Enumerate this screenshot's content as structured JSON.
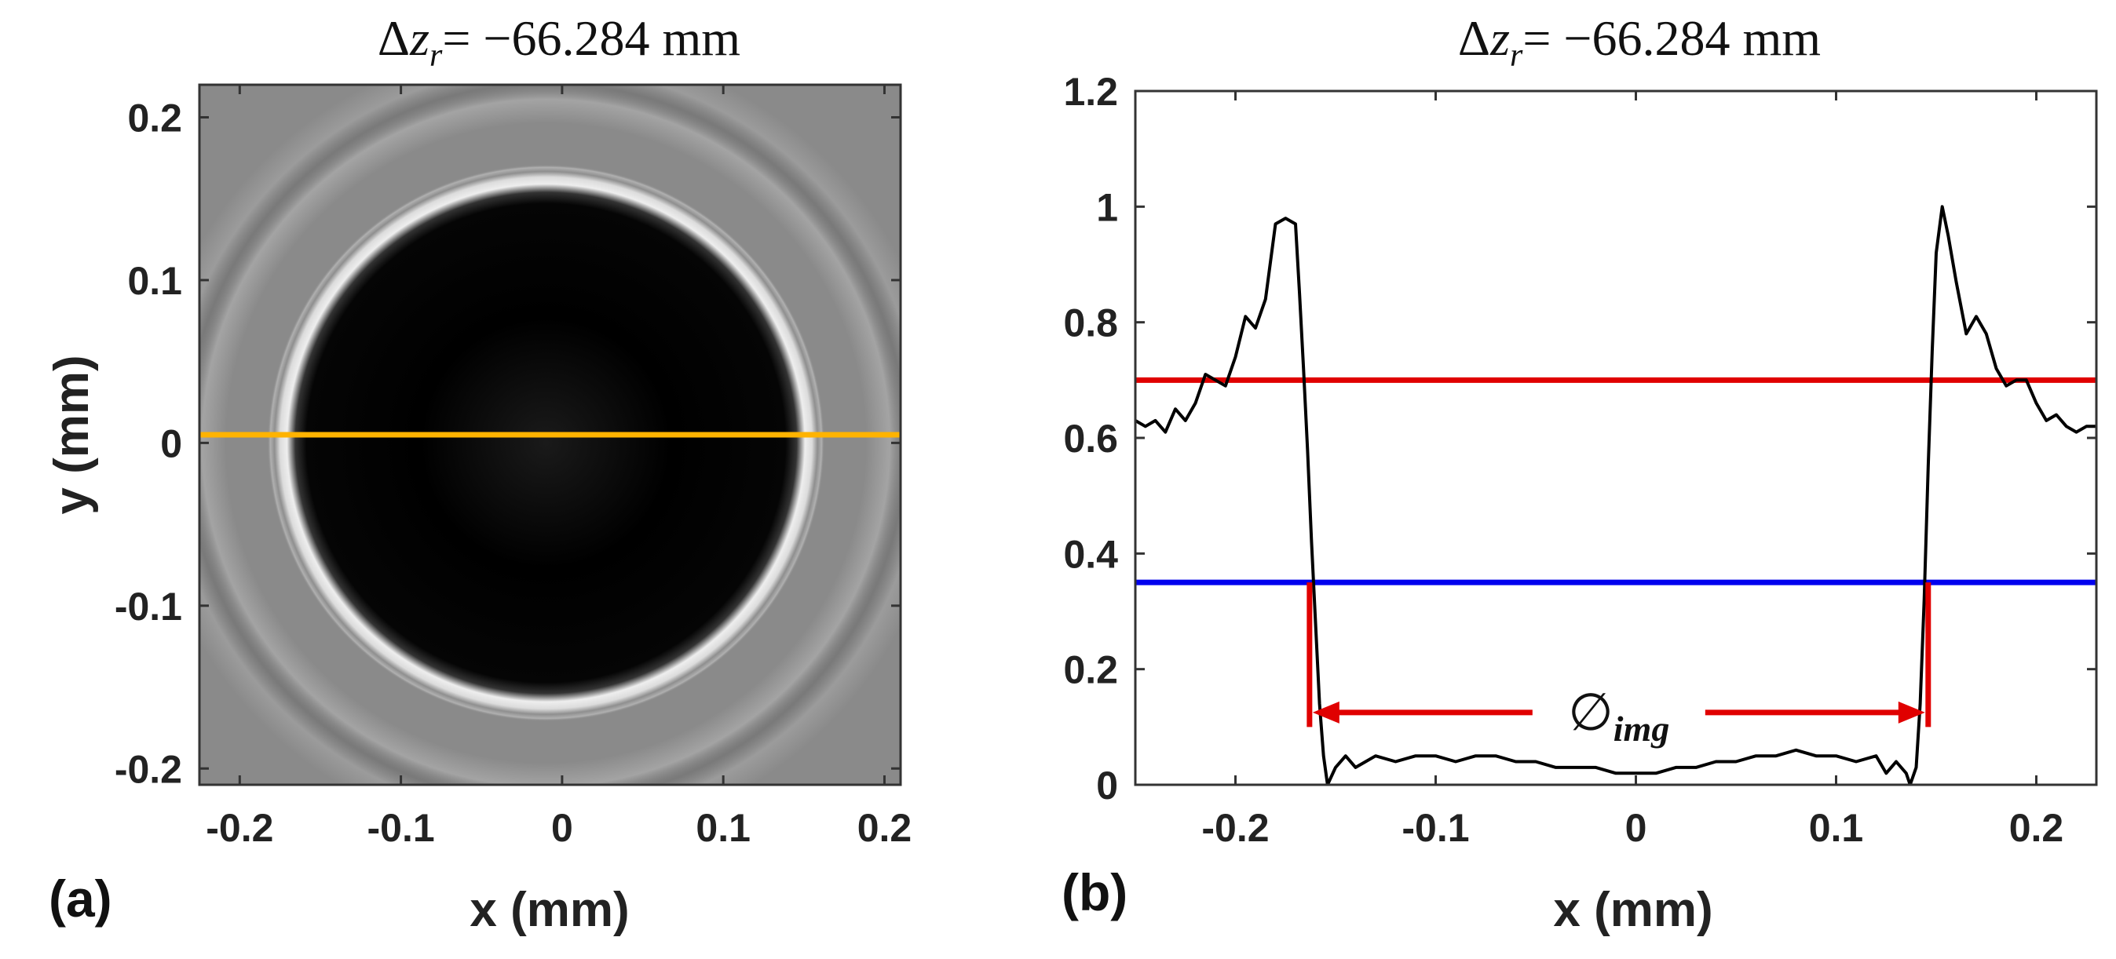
{
  "chart_data": [
    {
      "panel_label": "(a)",
      "type": "heatmap",
      "title": {
        "delta": "Δ",
        "var": "z",
        "sub": "r",
        "rest": "= −66.284 mm"
      },
      "xlabel": "x (mm)",
      "ylabel": "y (mm)",
      "xlim": [
        -0.225,
        0.21
      ],
      "ylim": [
        -0.21,
        0.22
      ],
      "xticks": [
        -0.2,
        -0.1,
        0,
        0.1,
        0.2
      ],
      "xtick_labels": [
        "-0.2",
        "-0.1",
        "0",
        "0.1",
        "0.2"
      ],
      "yticks": [
        0.2,
        0.1,
        0,
        -0.1,
        -0.2
      ],
      "ytick_labels": [
        "0.2",
        "0.1",
        "0",
        "-0.1",
        "-0.2"
      ],
      "image": {
        "colormap": "gray",
        "disk_center": [
          -0.01,
          0.0
        ],
        "disk_radius": 0.16
      },
      "line_profile": {
        "y": 0.005,
        "color": "#ffb300"
      }
    },
    {
      "panel_label": "(b)",
      "type": "line",
      "title": {
        "delta": "Δ",
        "var": "z",
        "sub": "r",
        "rest": "= −66.284 mm"
      },
      "xlabel": "x (mm)",
      "ylabel": "",
      "xlim": [
        -0.25,
        0.23
      ],
      "ylim": [
        0,
        1.2
      ],
      "xticks": [
        -0.2,
        -0.1,
        0,
        0.1,
        0.2
      ],
      "xtick_labels": [
        "-0.2",
        "-0.1",
        "0",
        "0.1",
        "0.2"
      ],
      "yticks": [
        0,
        0.2,
        0.4,
        0.6,
        0.8,
        1,
        1.2
      ],
      "ytick_labels": [
        "0",
        "0.2",
        "0.4",
        "0.6",
        "0.8",
        "1",
        "1.2"
      ],
      "series": [
        {
          "name": "profile",
          "color": "#000000",
          "x": [
            -0.25,
            -0.245,
            -0.24,
            -0.235,
            -0.23,
            -0.225,
            -0.22,
            -0.215,
            -0.21,
            -0.205,
            -0.2,
            -0.195,
            -0.19,
            -0.185,
            -0.18,
            -0.175,
            -0.17,
            -0.168,
            -0.166,
            -0.164,
            -0.162,
            -0.16,
            -0.158,
            -0.156,
            -0.154,
            -0.15,
            -0.145,
            -0.14,
            -0.135,
            -0.13,
            -0.12,
            -0.11,
            -0.1,
            -0.09,
            -0.08,
            -0.07,
            -0.06,
            -0.05,
            -0.04,
            -0.03,
            -0.02,
            -0.01,
            0,
            0.01,
            0.02,
            0.03,
            0.04,
            0.05,
            0.06,
            0.07,
            0.08,
            0.09,
            0.1,
            0.11,
            0.12,
            0.125,
            0.13,
            0.135,
            0.137,
            0.14,
            0.142,
            0.144,
            0.146,
            0.148,
            0.15,
            0.153,
            0.156,
            0.16,
            0.165,
            0.17,
            0.175,
            0.18,
            0.185,
            0.19,
            0.195,
            0.2,
            0.205,
            0.21,
            0.215,
            0.22,
            0.225,
            0.23
          ],
          "y": [
            0.63,
            0.62,
            0.63,
            0.61,
            0.65,
            0.63,
            0.66,
            0.71,
            0.7,
            0.69,
            0.74,
            0.81,
            0.79,
            0.84,
            0.97,
            0.98,
            0.97,
            0.85,
            0.72,
            0.58,
            0.42,
            0.28,
            0.14,
            0.05,
            0.0,
            0.03,
            0.05,
            0.03,
            0.04,
            0.05,
            0.04,
            0.05,
            0.05,
            0.04,
            0.05,
            0.05,
            0.04,
            0.04,
            0.03,
            0.03,
            0.03,
            0.02,
            0.02,
            0.02,
            0.03,
            0.03,
            0.04,
            0.04,
            0.05,
            0.05,
            0.06,
            0.05,
            0.05,
            0.04,
            0.05,
            0.02,
            0.04,
            0.02,
            0.0,
            0.03,
            0.14,
            0.32,
            0.55,
            0.75,
            0.92,
            1.0,
            0.95,
            0.87,
            0.78,
            0.81,
            0.78,
            0.72,
            0.69,
            0.7,
            0.7,
            0.66,
            0.63,
            0.64,
            0.62,
            0.61,
            0.62,
            0.62
          ]
        }
      ],
      "hlines": [
        {
          "name": "upper-threshold",
          "y": 0.7,
          "color": "#e00000"
        },
        {
          "name": "lower-threshold",
          "y": 0.35,
          "color": "#0000ee"
        }
      ],
      "diameter_marker": {
        "x_left": -0.163,
        "x_right": 0.146,
        "y_top": 0.35,
        "y_bottom": 0.1,
        "y_arrow": 0.125,
        "color": "#e00000",
        "symbol": "∅",
        "sub": "img"
      }
    }
  ]
}
